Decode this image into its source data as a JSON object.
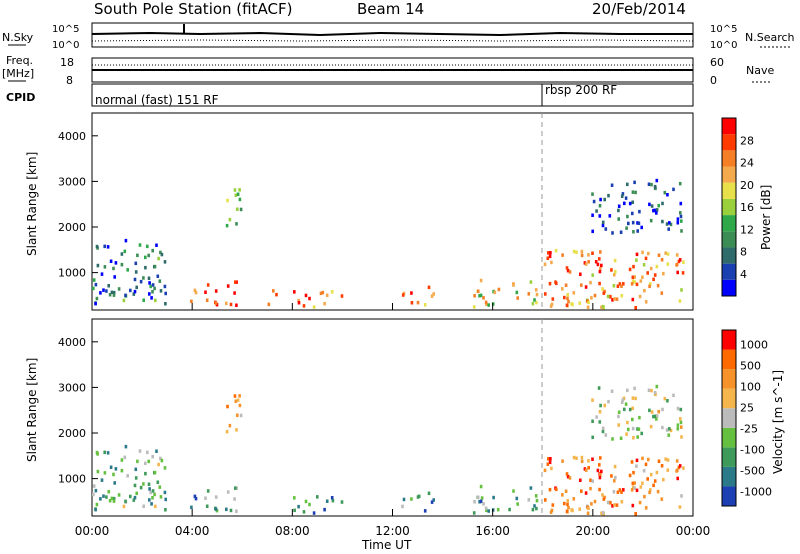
{
  "header": {
    "title": "South Pole Station (fitACF)",
    "beam": "Beam 14",
    "date": "20/Feb/2014"
  },
  "top_panels": {
    "nsky_label": "N.Sky",
    "nsky_ticks": [
      "10^5",
      "10^0"
    ],
    "nsearch_label": "N.Search",
    "nsearch_ticks": [
      "10^5",
      "10^0"
    ],
    "freq_label": "Freq.",
    "freq_unit": "[MHz]",
    "freq_ticks": [
      "18",
      "8"
    ],
    "nave_label": "Nave",
    "nave_ticks": [
      "60",
      "0"
    ],
    "cpid_label": "CPID",
    "cpid_segments": [
      {
        "label": "normal (fast) 151 RF",
        "start_hour": 0
      },
      {
        "label": "rbsp 200 RF",
        "start_hour": 18
      }
    ]
  },
  "chart_data": [
    {
      "type": "heatmap",
      "panel": "power",
      "xlabel": "",
      "ylabel": "Slant Range [km]",
      "xlim": [
        0,
        24
      ],
      "ylim": [
        180,
        4500
      ],
      "yticks": [
        "1000",
        "2000",
        "3000",
        "4000"
      ],
      "colorbar_label": "Power [dB]",
      "colorbar_ticks": [
        "4",
        "8",
        "12",
        "16",
        "20",
        "24",
        "28"
      ],
      "colorbar_colors": [
        "#0000ff",
        "#1a3fb0",
        "#2f6b6b",
        "#3c8c55",
        "#2fa84a",
        "#9ad03b",
        "#e8e04a",
        "#f4a94c",
        "#f57f26",
        "#ff3b00",
        "#ff0000"
      ],
      "region_values": [
        {
          "t_start": 0.0,
          "t_end": 2.9,
          "r_start": 200,
          "r_end": 1700,
          "level": 0.25
        },
        {
          "t_start": 5.3,
          "t_end": 6.0,
          "r_start": 1900,
          "r_end": 2800,
          "level": 0.45
        },
        {
          "t_start": 3.9,
          "t_end": 5.8,
          "r_start": 250,
          "r_end": 800,
          "level": 0.85
        },
        {
          "t_start": 7.0,
          "t_end": 7.4,
          "r_start": 200,
          "r_end": 600,
          "level": 0.7
        },
        {
          "t_start": 8.0,
          "t_end": 10.0,
          "r_start": 200,
          "r_end": 600,
          "level": 0.75
        },
        {
          "t_start": 12.2,
          "t_end": 13.6,
          "r_start": 250,
          "r_end": 650,
          "level": 0.8
        },
        {
          "t_start": 15.2,
          "t_end": 17.8,
          "r_start": 200,
          "r_end": 800,
          "level": 0.6
        },
        {
          "t_start": 18.0,
          "t_end": 23.8,
          "r_start": 200,
          "r_end": 1500,
          "level": 0.75
        },
        {
          "t_start": 19.9,
          "t_end": 23.5,
          "r_start": 1800,
          "r_end": 3000,
          "level": 0.15
        }
      ]
    },
    {
      "type": "heatmap",
      "panel": "velocity",
      "xlabel": "Time UT",
      "ylabel": "Slant Range [km]",
      "xlim": [
        0,
        24
      ],
      "ylim": [
        180,
        4500
      ],
      "xticks": [
        "00:00",
        "04:00",
        "08:00",
        "12:00",
        "16:00",
        "20:00",
        "00:00"
      ],
      "yticks": [
        "1000",
        "2000",
        "3000",
        "4000"
      ],
      "colorbar_label": "Velocity [m s^-1]",
      "colorbar_ticks": [
        "1000",
        "500",
        "100",
        "25",
        "-25",
        "-100",
        "-500",
        "-1000"
      ],
      "colorbar_colors": [
        "#1c3fb3",
        "#2b7a8a",
        "#3d9a5a",
        "#66c040",
        "#bbbbbb",
        "#f4b64c",
        "#f5922a",
        "#ff6a00",
        "#ff0000"
      ],
      "region_values": [
        {
          "t_start": 0.0,
          "t_end": 2.9,
          "r_start": 200,
          "r_end": 1700,
          "level": 0.35
        },
        {
          "t_start": 5.3,
          "t_end": 6.0,
          "r_start": 1900,
          "r_end": 2800,
          "level": 0.7
        },
        {
          "t_start": 3.9,
          "t_end": 5.8,
          "r_start": 250,
          "r_end": 800,
          "level": 0.3
        },
        {
          "t_start": 8.0,
          "t_end": 10.0,
          "r_start": 200,
          "r_end": 600,
          "level": 0.2
        },
        {
          "t_start": 12.2,
          "t_end": 13.6,
          "r_start": 250,
          "r_end": 650,
          "level": 0.25
        },
        {
          "t_start": 15.2,
          "t_end": 17.8,
          "r_start": 200,
          "r_end": 800,
          "level": 0.3
        },
        {
          "t_start": 18.0,
          "t_end": 23.8,
          "r_start": 200,
          "r_end": 1500,
          "level": 0.75
        },
        {
          "t_start": 19.9,
          "t_end": 23.5,
          "r_start": 1800,
          "r_end": 3000,
          "level": 0.45
        }
      ]
    }
  ]
}
